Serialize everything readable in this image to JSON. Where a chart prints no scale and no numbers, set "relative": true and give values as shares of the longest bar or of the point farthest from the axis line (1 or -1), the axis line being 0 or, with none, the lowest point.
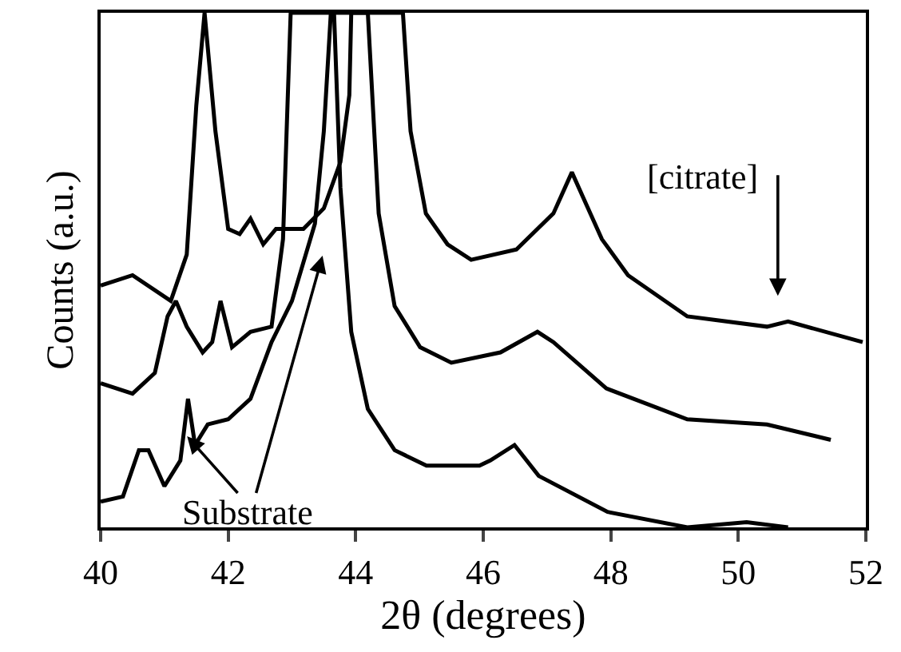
{
  "chart_data": {
    "type": "line",
    "xlabel": "2θ (degrees)",
    "ylabel": "Counts (a.u.)",
    "relative": true,
    "xlim": [
      40,
      52
    ],
    "xticks": [
      40,
      42,
      44,
      46,
      48,
      50,
      52
    ],
    "grid": false,
    "marker": "none",
    "line_style": "solid",
    "series": [
      {
        "color": "#000000",
        "x": [
          40,
          40.5,
          41.1,
          41.35,
          41.5,
          41.63,
          41.8,
          42.0,
          42.18,
          42.35,
          42.55,
          42.75,
          43.18,
          43.5,
          43.76,
          43.9,
          43.93,
          44.74,
          44.86,
          45.1,
          45.44,
          45.81,
          46.52,
          47.1,
          47.39,
          47.86,
          48.27,
          49.2,
          50.45,
          50.78,
          51.95
        ],
        "values": [
          0.47,
          0.49,
          0.44,
          0.53,
          0.82,
          1,
          0.77,
          0.58,
          0.57,
          0.6,
          0.55,
          0.58,
          0.58,
          0.62,
          0.71,
          0.84,
          1,
          1,
          0.77,
          0.61,
          0.55,
          0.52,
          0.54,
          0.61,
          0.69,
          0.56,
          0.49,
          0.41,
          0.39,
          0.4,
          0.36
        ]
      },
      {
        "color": "#000000",
        "x": [
          40,
          40.5,
          40.85,
          41.05,
          41.18,
          41.35,
          41.6,
          41.75,
          41.88,
          42.06,
          42.35,
          42.68,
          42.86,
          42.93,
          42.98,
          44.19,
          44.36,
          44.61,
          45.01,
          45.5,
          46.27,
          46.85,
          47.1,
          47.93,
          49.2,
          50.45,
          51.45
        ],
        "values": [
          0.28,
          0.26,
          0.3,
          0.41,
          0.44,
          0.39,
          0.34,
          0.36,
          0.44,
          0.35,
          0.38,
          0.39,
          0.56,
          0.82,
          1,
          1,
          0.61,
          0.43,
          0.35,
          0.32,
          0.34,
          0.38,
          0.36,
          0.27,
          0.21,
          0.2,
          0.17
        ]
      },
      {
        "color": "#000000",
        "x": [
          40,
          40.35,
          40.6,
          40.75,
          41.0,
          41.25,
          41.37,
          41.48,
          41.68,
          42.0,
          42.35,
          42.68,
          43.0,
          43.36,
          43.5,
          43.61,
          43.66,
          43.76,
          43.93,
          44.19,
          44.61,
          45.11,
          45.44,
          45.94,
          46.11,
          46.49,
          46.87,
          47.95,
          49.2,
          50.13,
          50.78
        ],
        "values": [
          0.05,
          0.06,
          0.15,
          0.15,
          0.08,
          0.13,
          0.25,
          0.16,
          0.2,
          0.21,
          0.25,
          0.36,
          0.44,
          0.59,
          0.77,
          1,
          1,
          0.66,
          0.38,
          0.23,
          0.15,
          0.12,
          0.12,
          0.12,
          0.13,
          0.16,
          0.1,
          0.03,
          0,
          0.01,
          0
        ]
      }
    ],
    "annotations": [
      "Substrate",
      "[citrate]"
    ]
  }
}
